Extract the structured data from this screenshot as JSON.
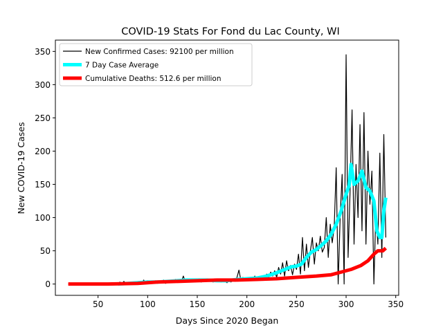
{
  "chart_data": {
    "type": "line",
    "title": "COVID-19 Stats For Fond du Lac County, WI",
    "xlabel": "Days Since 2020 Began",
    "ylabel": "New COVID-19 Cases",
    "xlim": [
      7,
      353
    ],
    "ylim": [
      -17,
      367
    ],
    "xticks": [
      50,
      100,
      150,
      200,
      250,
      300,
      350
    ],
    "yticks": [
      0,
      50,
      100,
      150,
      200,
      250,
      300,
      350
    ],
    "grid": false,
    "legend_position": "top-left",
    "series": [
      {
        "name": "New Confirmed Cases: 92100 per million",
        "color": "#000000",
        "points": [
          [
            20,
            0
          ],
          [
            30,
            0
          ],
          [
            40,
            0
          ],
          [
            50,
            0
          ],
          [
            60,
            0
          ],
          [
            70,
            0
          ],
          [
            72,
            3
          ],
          [
            74,
            0
          ],
          [
            76,
            4
          ],
          [
            78,
            1
          ],
          [
            80,
            2
          ],
          [
            82,
            0
          ],
          [
            84,
            3
          ],
          [
            86,
            1
          ],
          [
            88,
            0
          ],
          [
            90,
            2
          ],
          [
            92,
            4
          ],
          [
            94,
            1
          ],
          [
            96,
            6
          ],
          [
            98,
            2
          ],
          [
            100,
            5
          ],
          [
            102,
            1
          ],
          [
            104,
            3
          ],
          [
            106,
            2
          ],
          [
            108,
            5
          ],
          [
            110,
            1
          ],
          [
            112,
            4
          ],
          [
            114,
            2
          ],
          [
            116,
            6
          ],
          [
            118,
            1
          ],
          [
            120,
            3
          ],
          [
            122,
            5
          ],
          [
            124,
            2
          ],
          [
            126,
            4
          ],
          [
            128,
            7
          ],
          [
            130,
            3
          ],
          [
            132,
            6
          ],
          [
            134,
            4
          ],
          [
            136,
            12
          ],
          [
            138,
            3
          ],
          [
            140,
            8
          ],
          [
            142,
            4
          ],
          [
            144,
            6
          ],
          [
            146,
            3
          ],
          [
            148,
            7
          ],
          [
            150,
            5
          ],
          [
            152,
            8
          ],
          [
            154,
            3
          ],
          [
            156,
            6
          ],
          [
            158,
            4
          ],
          [
            160,
            7
          ],
          [
            162,
            5
          ],
          [
            164,
            6
          ],
          [
            166,
            3
          ],
          [
            168,
            8
          ],
          [
            170,
            4
          ],
          [
            172,
            5
          ],
          [
            174,
            3
          ],
          [
            176,
            7
          ],
          [
            178,
            4
          ],
          [
            180,
            2
          ],
          [
            182,
            6
          ],
          [
            184,
            3
          ],
          [
            186,
            7
          ],
          [
            188,
            4
          ],
          [
            190,
            10
          ],
          [
            192,
            21
          ],
          [
            194,
            5
          ],
          [
            196,
            10
          ],
          [
            198,
            6
          ],
          [
            200,
            9
          ],
          [
            202,
            6
          ],
          [
            204,
            10
          ],
          [
            206,
            8
          ],
          [
            208,
            12
          ],
          [
            210,
            6
          ],
          [
            212,
            10
          ],
          [
            214,
            7
          ],
          [
            216,
            12
          ],
          [
            218,
            9
          ],
          [
            220,
            15
          ],
          [
            222,
            10
          ],
          [
            224,
            18
          ],
          [
            226,
            12
          ],
          [
            228,
            20
          ],
          [
            230,
            10
          ],
          [
            232,
            25
          ],
          [
            234,
            15
          ],
          [
            236,
            32
          ],
          [
            238,
            12
          ],
          [
            240,
            35
          ],
          [
            242,
            20
          ],
          [
            244,
            28
          ],
          [
            246,
            14
          ],
          [
            248,
            30
          ],
          [
            250,
            22
          ],
          [
            252,
            45
          ],
          [
            254,
            15
          ],
          [
            256,
            70
          ],
          [
            258,
            20
          ],
          [
            260,
            60
          ],
          [
            262,
            25
          ],
          [
            264,
            50
          ],
          [
            266,
            70
          ],
          [
            268,
            30
          ],
          [
            270,
            62
          ],
          [
            272,
            50
          ],
          [
            274,
            72
          ],
          [
            276,
            48
          ],
          [
            278,
            55
          ],
          [
            280,
            100
          ],
          [
            282,
            40
          ],
          [
            284,
            90
          ],
          [
            286,
            62
          ],
          [
            288,
            85
          ],
          [
            290,
            175
          ],
          [
            292,
            0
          ],
          [
            294,
            100
          ],
          [
            296,
            165
          ],
          [
            298,
            0
          ],
          [
            300,
            345
          ],
          [
            302,
            40
          ],
          [
            304,
            140
          ],
          [
            306,
            262
          ],
          [
            308,
            60
          ],
          [
            310,
            180
          ],
          [
            312,
            100
          ],
          [
            314,
            240
          ],
          [
            316,
            80
          ],
          [
            318,
            258
          ],
          [
            320,
            60
          ],
          [
            322,
            200
          ],
          [
            324,
            120
          ],
          [
            326,
            170
          ],
          [
            328,
            0
          ],
          [
            330,
            110
          ],
          [
            332,
            60
          ],
          [
            334,
            197
          ],
          [
            336,
            40
          ],
          [
            338,
            225
          ],
          [
            340,
            70
          ]
        ]
      },
      {
        "name": "7 Day Case Average",
        "color": "#00ffff",
        "points": [
          [
            70,
            0
          ],
          [
            80,
            1
          ],
          [
            90,
            2
          ],
          [
            100,
            3
          ],
          [
            110,
            3
          ],
          [
            120,
            4
          ],
          [
            130,
            5
          ],
          [
            140,
            6
          ],
          [
            150,
            6
          ],
          [
            160,
            6
          ],
          [
            170,
            5
          ],
          [
            180,
            5
          ],
          [
            190,
            7
          ],
          [
            200,
            8
          ],
          [
            210,
            9
          ],
          [
            220,
            12
          ],
          [
            230,
            17
          ],
          [
            240,
            23
          ],
          [
            245,
            26
          ],
          [
            250,
            27
          ],
          [
            255,
            30
          ],
          [
            260,
            40
          ],
          [
            265,
            48
          ],
          [
            270,
            52
          ],
          [
            275,
            58
          ],
          [
            280,
            65
          ],
          [
            285,
            75
          ],
          [
            290,
            90
          ],
          [
            295,
            110
          ],
          [
            300,
            135
          ],
          [
            303,
            148
          ],
          [
            305,
            180
          ],
          [
            308,
            150
          ],
          [
            312,
            155
          ],
          [
            316,
            170
          ],
          [
            320,
            145
          ],
          [
            324,
            140
          ],
          [
            328,
            125
          ],
          [
            331,
            80
          ],
          [
            334,
            70
          ],
          [
            336,
            70
          ],
          [
            338,
            110
          ],
          [
            340,
            130
          ]
        ]
      },
      {
        "name": "Cumulative Deaths: 512.6 per million",
        "color": "#ff0000",
        "points": [
          [
            20,
            0
          ],
          [
            60,
            0
          ],
          [
            90,
            1
          ],
          [
            110,
            3
          ],
          [
            130,
            4
          ],
          [
            150,
            5
          ],
          [
            170,
            6
          ],
          [
            190,
            6
          ],
          [
            210,
            7
          ],
          [
            230,
            8
          ],
          [
            250,
            10
          ],
          [
            270,
            12
          ],
          [
            285,
            14
          ],
          [
            295,
            18
          ],
          [
            305,
            22
          ],
          [
            315,
            28
          ],
          [
            322,
            35
          ],
          [
            328,
            45
          ],
          [
            332,
            50
          ],
          [
            337,
            50
          ],
          [
            340,
            54
          ]
        ]
      }
    ]
  }
}
